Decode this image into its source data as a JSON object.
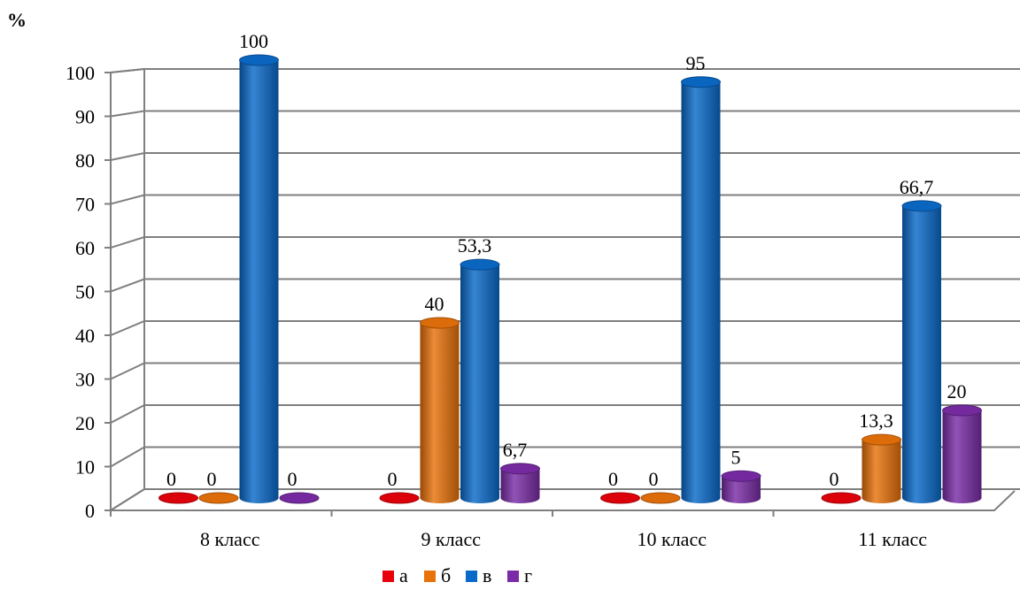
{
  "chart_data": {
    "type": "bar",
    "ylabel": "%",
    "ylim": [
      0,
      100
    ],
    "yticks": [
      0,
      10,
      20,
      30,
      40,
      50,
      60,
      70,
      80,
      90,
      100
    ],
    "categories": [
      "8 класс",
      "9 класс",
      "10 класс",
      "11 класс"
    ],
    "series": [
      {
        "name": "а",
        "color": "#e8000b",
        "values": [
          0,
          0,
          0,
          0
        ],
        "labels": [
          "0",
          "0",
          "0",
          "0"
        ]
      },
      {
        "name": "б",
        "color": "#e8710a",
        "values": [
          0,
          40,
          0,
          13.3
        ],
        "labels": [
          "0",
          "40",
          "0",
          "13,3"
        ]
      },
      {
        "name": "в",
        "color": "#0a6ac9",
        "values": [
          100,
          53.3,
          95,
          66.7
        ],
        "labels": [
          "100",
          "53,3",
          "95",
          "66,7"
        ]
      },
      {
        "name": "г",
        "color": "#7a2ca6",
        "values": [
          0,
          6.7,
          5,
          20
        ],
        "labels": [
          "0",
          "6,7",
          "5",
          "20"
        ]
      }
    ],
    "grid": true,
    "legend": "bottom"
  }
}
